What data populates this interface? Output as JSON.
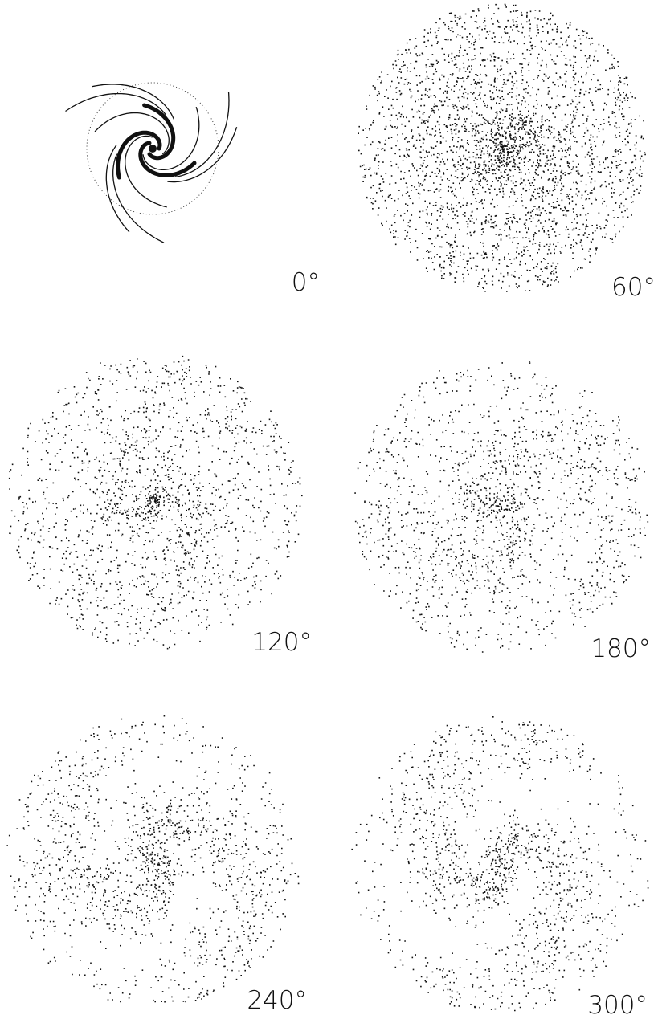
{
  "panels": [
    {
      "label": "0°"
    },
    {
      "label": "60°"
    },
    {
      "label": "120°"
    },
    {
      "label": "180°"
    },
    {
      "label": "240°"
    },
    {
      "label": "300°"
    }
  ]
}
